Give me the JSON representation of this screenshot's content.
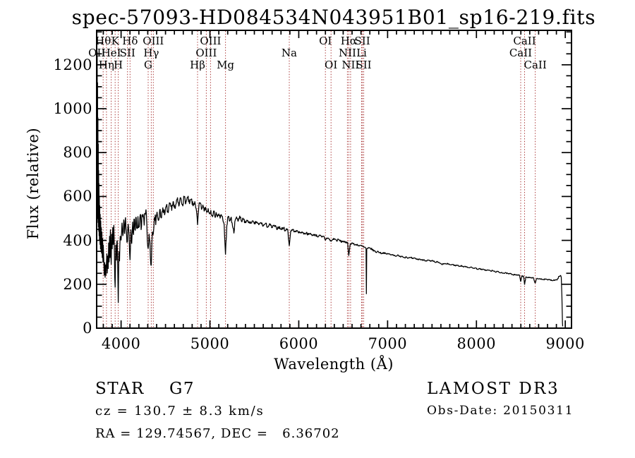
{
  "title": "spec-57093-HD084534N043951B01_sp16-219.fits",
  "annotations": {
    "object_class": "STAR    G7",
    "cz": "cz = 130.7 ± 8.3 km/s",
    "radec": "RA = 129.74567, DEC =   6.36702",
    "survey": "LAMOST DR3",
    "obs_date": "Obs-Date: 20150311"
  },
  "colors": {
    "spectrum": "#000000",
    "line_marker": "#a83434",
    "frame": "#000000",
    "background": "#ffffff"
  },
  "chart_data": {
    "type": "line",
    "title": "spec-57093-HD084534N043951B01_sp16-219.fits",
    "xlabel": "Wavelength (Å)",
    "ylabel": "Flux (relative)",
    "xlim": [
      3725,
      9070
    ],
    "ylim": [
      0,
      1357
    ],
    "x_ticks": [
      4000,
      5000,
      6000,
      7000,
      8000,
      9000
    ],
    "y_ticks": [
      0,
      200,
      400,
      600,
      800,
      1000,
      1200
    ],
    "x_minor_step": 100,
    "y_minor_step": 50,
    "grid": false,
    "legend": "none",
    "spectral_lines": [
      {
        "label": "OII",
        "wavelength": 3727,
        "row": 2
      },
      {
        "label": "Hθ",
        "wavelength": 3798,
        "row": 1
      },
      {
        "label": "Hη",
        "wavelength": 3835,
        "row": 3
      },
      {
        "label": "HeI",
        "wavelength": 3889,
        "row": 2
      },
      {
        "label": "K",
        "wavelength": 3933,
        "row": 1
      },
      {
        "label": "H",
        "wavelength": 3968,
        "row": 3
      },
      {
        "label": "SII",
        "wavelength": 4072,
        "row": 2
      },
      {
        "label": "Hδ",
        "wavelength": 4101,
        "row": 1
      },
      {
        "label": "G",
        "wavelength": 4305,
        "row": 3
      },
      {
        "label": "Hγ",
        "wavelength": 4340,
        "row": 2
      },
      {
        "label": "OIII",
        "wavelength": 4363,
        "row": 1
      },
      {
        "label": "Hβ",
        "wavelength": 4861,
        "row": 3
      },
      {
        "label": "OIII",
        "wavelength": 4959,
        "row": 2
      },
      {
        "label": "OIII",
        "wavelength": 5007,
        "row": 1
      },
      {
        "label": "Mg",
        "wavelength": 5175,
        "row": 3
      },
      {
        "label": "Na",
        "wavelength": 5893,
        "row": 2
      },
      {
        "label": "OI",
        "wavelength": 6300,
        "row": 1
      },
      {
        "label": "OI",
        "wavelength": 6363,
        "row": 3
      },
      {
        "label": "NII",
        "wavelength": 6548,
        "row": 2
      },
      {
        "label": "Hα",
        "wavelength": 6563,
        "row": 1
      },
      {
        "label": "NII",
        "wavelength": 6583,
        "row": 3
      },
      {
        "label": "Li",
        "wavelength": 6707,
        "row": 2
      },
      {
        "label": "SII",
        "wavelength": 6716,
        "row": 1
      },
      {
        "label": "SII",
        "wavelength": 6731,
        "row": 3
      },
      {
        "label": "CaII",
        "wavelength": 8498,
        "row": 2
      },
      {
        "label": "CaII",
        "wavelength": 8542,
        "row": 1
      },
      {
        "label": "CaII",
        "wavelength": 8662,
        "row": 3
      }
    ],
    "noise_regions": [
      [
        3727,
        3802,
        0
      ],
      [
        3802,
        4400,
        40
      ],
      [
        4400,
        4700,
        18
      ],
      [
        4700,
        5400,
        14
      ],
      [
        5400,
        5900,
        8
      ],
      [
        5900,
        6500,
        6
      ],
      [
        6500,
        6900,
        5
      ],
      [
        6900,
        7600,
        4
      ],
      [
        7600,
        8900,
        3
      ],
      [
        8900,
        8972,
        5
      ]
    ],
    "anchors": [
      [
        3727,
        1350
      ],
      [
        3729,
        520
      ],
      [
        3731,
        1260
      ],
      [
        3733,
        500
      ],
      [
        3735,
        1120
      ],
      [
        3737,
        540
      ],
      [
        3739,
        960
      ],
      [
        3741,
        480
      ],
      [
        3743,
        840
      ],
      [
        3745,
        460
      ],
      [
        3747,
        720
      ],
      [
        3749,
        440
      ],
      [
        3751,
        660
      ],
      [
        3753,
        420
      ],
      [
        3755,
        600
      ],
      [
        3757,
        400
      ],
      [
        3759,
        560
      ],
      [
        3762,
        380
      ],
      [
        3765,
        520
      ],
      [
        3768,
        360
      ],
      [
        3771,
        490
      ],
      [
        3774,
        350
      ],
      [
        3777,
        460
      ],
      [
        3780,
        340
      ],
      [
        3784,
        440
      ],
      [
        3788,
        320
      ],
      [
        3792,
        410
      ],
      [
        3796,
        300
      ],
      [
        3800,
        380
      ],
      [
        3805,
        310
      ],
      [
        3810,
        240
      ],
      [
        3815,
        300
      ],
      [
        3820,
        230
      ],
      [
        3825,
        290
      ],
      [
        3830,
        240
      ],
      [
        3835,
        300
      ],
      [
        3840,
        340
      ],
      [
        3845,
        250
      ],
      [
        3850,
        330
      ],
      [
        3855,
        270
      ],
      [
        3860,
        390
      ],
      [
        3865,
        300
      ],
      [
        3870,
        420
      ],
      [
        3875,
        320
      ],
      [
        3880,
        450
      ],
      [
        3885,
        340
      ],
      [
        3889,
        290
      ],
      [
        3894,
        430
      ],
      [
        3900,
        360
      ],
      [
        3906,
        460
      ],
      [
        3912,
        380
      ],
      [
        3918,
        470
      ],
      [
        3924,
        360
      ],
      [
        3933,
        185
      ],
      [
        3940,
        380
      ],
      [
        3948,
        310
      ],
      [
        3956,
        400
      ],
      [
        3962,
        290
      ],
      [
        3968,
        115
      ],
      [
        3975,
        350
      ],
      [
        3982,
        305
      ],
      [
        3990,
        420
      ],
      [
        4000,
        400
      ],
      [
        4010,
        480
      ],
      [
        4020,
        420
      ],
      [
        4030,
        495
      ],
      [
        4040,
        430
      ],
      [
        4050,
        505
      ],
      [
        4060,
        440
      ],
      [
        4072,
        395
      ],
      [
        4080,
        475
      ],
      [
        4090,
        425
      ],
      [
        4101,
        310
      ],
      [
        4110,
        450
      ],
      [
        4120,
        385
      ],
      [
        4130,
        485
      ],
      [
        4140,
        425
      ],
      [
        4150,
        495
      ],
      [
        4160,
        445
      ],
      [
        4170,
        505
      ],
      [
        4180,
        455
      ],
      [
        4190,
        510
      ],
      [
        4200,
        460
      ],
      [
        4215,
        515
      ],
      [
        4230,
        465
      ],
      [
        4245,
        520
      ],
      [
        4260,
        468
      ],
      [
        4275,
        525
      ],
      [
        4290,
        472
      ],
      [
        4305,
        362
      ],
      [
        4315,
        430
      ],
      [
        4325,
        395
      ],
      [
        4340,
        285
      ],
      [
        4352,
        440
      ],
      [
        4363,
        430
      ],
      [
        4375,
        505
      ],
      [
        4390,
        470
      ],
      [
        4405,
        530
      ],
      [
        4420,
        490
      ],
      [
        4435,
        540
      ],
      [
        4450,
        502
      ],
      [
        4470,
        550
      ],
      [
        4490,
        515
      ],
      [
        4510,
        558
      ],
      [
        4530,
        525
      ],
      [
        4550,
        566
      ],
      [
        4570,
        535
      ],
      [
        4590,
        576
      ],
      [
        4610,
        545
      ],
      [
        4630,
        586
      ],
      [
        4650,
        555
      ],
      [
        4670,
        595
      ],
      [
        4690,
        565
      ],
      [
        4710,
        598
      ],
      [
        4730,
        572
      ],
      [
        4750,
        596
      ],
      [
        4770,
        566
      ],
      [
        4790,
        588
      ],
      [
        4810,
        556
      ],
      [
        4830,
        578
      ],
      [
        4845,
        545
      ],
      [
        4861,
        470
      ],
      [
        4875,
        552
      ],
      [
        4890,
        572
      ],
      [
        4905,
        540
      ],
      [
        4920,
        562
      ],
      [
        4935,
        532
      ],
      [
        4950,
        552
      ],
      [
        4965,
        526
      ],
      [
        4980,
        546
      ],
      [
        4995,
        520
      ],
      [
        5010,
        538
      ],
      [
        5025,
        514
      ],
      [
        5040,
        532
      ],
      [
        5055,
        510
      ],
      [
        5070,
        528
      ],
      [
        5085,
        506
      ],
      [
        5100,
        522
      ],
      [
        5115,
        500
      ],
      [
        5130,
        515
      ],
      [
        5145,
        494
      ],
      [
        5160,
        472
      ],
      [
        5175,
        335
      ],
      [
        5190,
        468
      ],
      [
        5205,
        508
      ],
      [
        5220,
        487
      ],
      [
        5235,
        502
      ],
      [
        5250,
        480
      ],
      [
        5270,
        432
      ],
      [
        5285,
        492
      ],
      [
        5300,
        508
      ],
      [
        5320,
        488
      ],
      [
        5340,
        502
      ],
      [
        5360,
        484
      ],
      [
        5380,
        497
      ],
      [
        5400,
        480
      ],
      [
        5425,
        492
      ],
      [
        5450,
        476
      ],
      [
        5475,
        488
      ],
      [
        5500,
        474
      ],
      [
        5525,
        485
      ],
      [
        5550,
        470
      ],
      [
        5575,
        481
      ],
      [
        5600,
        466
      ],
      [
        5625,
        476
      ],
      [
        5650,
        462
      ],
      [
        5675,
        472
      ],
      [
        5700,
        458
      ],
      [
        5725,
        467
      ],
      [
        5750,
        454
      ],
      [
        5775,
        462
      ],
      [
        5800,
        450
      ],
      [
        5825,
        458
      ],
      [
        5850,
        446
      ],
      [
        5875,
        452
      ],
      [
        5893,
        375
      ],
      [
        5910,
        444
      ],
      [
        5935,
        449
      ],
      [
        5960,
        438
      ],
      [
        5985,
        444
      ],
      [
        6010,
        434
      ],
      [
        6035,
        439
      ],
      [
        6060,
        430
      ],
      [
        6085,
        435
      ],
      [
        6110,
        426
      ],
      [
        6135,
        431
      ],
      [
        6160,
        422
      ],
      [
        6185,
        427
      ],
      [
        6210,
        418
      ],
      [
        6235,
        422
      ],
      [
        6260,
        414
      ],
      [
        6285,
        418
      ],
      [
        6300,
        400
      ],
      [
        6315,
        412
      ],
      [
        6340,
        407
      ],
      [
        6363,
        395
      ],
      [
        6380,
        404
      ],
      [
        6400,
        408
      ],
      [
        6425,
        399
      ],
      [
        6450,
        403
      ],
      [
        6475,
        394
      ],
      [
        6500,
        397
      ],
      [
        6525,
        389
      ],
      [
        6550,
        391
      ],
      [
        6563,
        330
      ],
      [
        6580,
        385
      ],
      [
        6605,
        388
      ],
      [
        6630,
        379
      ],
      [
        6655,
        382
      ],
      [
        6680,
        374
      ],
      [
        6705,
        376
      ],
      [
        6730,
        369
      ],
      [
        6750,
        367
      ],
      [
        6757,
        362
      ],
      [
        6761,
        155
      ],
      [
        6765,
        360
      ],
      [
        6780,
        363
      ],
      [
        6805,
        365
      ],
      [
        6830,
        357
      ],
      [
        6855,
        351
      ],
      [
        6870,
        346
      ],
      [
        6885,
        350
      ],
      [
        6910,
        345
      ],
      [
        6935,
        341
      ],
      [
        6960,
        344
      ],
      [
        6985,
        337
      ],
      [
        7010,
        340
      ],
      [
        7035,
        333
      ],
      [
        7060,
        336
      ],
      [
        7085,
        329
      ],
      [
        7110,
        332
      ],
      [
        7135,
        326
      ],
      [
        7160,
        329
      ],
      [
        7185,
        322
      ],
      [
        7210,
        325
      ],
      [
        7235,
        319
      ],
      [
        7260,
        321
      ],
      [
        7285,
        316
      ],
      [
        7310,
        318
      ],
      [
        7335,
        313
      ],
      [
        7360,
        315
      ],
      [
        7385,
        310
      ],
      [
        7410,
        312
      ],
      [
        7435,
        307
      ],
      [
        7460,
        309
      ],
      [
        7485,
        304
      ],
      [
        7510,
        306
      ],
      [
        7535,
        300
      ],
      [
        7560,
        302
      ],
      [
        7585,
        296
      ],
      [
        7610,
        290
      ],
      [
        7635,
        294
      ],
      [
        7660,
        292
      ],
      [
        7685,
        293
      ],
      [
        7710,
        288
      ],
      [
        7735,
        290
      ],
      [
        7760,
        285
      ],
      [
        7785,
        287
      ],
      [
        7810,
        282
      ],
      [
        7835,
        284
      ],
      [
        7860,
        279
      ],
      [
        7885,
        281
      ],
      [
        7910,
        276
      ],
      [
        7935,
        278
      ],
      [
        7960,
        273
      ],
      [
        7985,
        275
      ],
      [
        8010,
        269
      ],
      [
        8035,
        271
      ],
      [
        8060,
        266
      ],
      [
        8085,
        268
      ],
      [
        8110,
        263
      ],
      [
        8135,
        265
      ],
      [
        8160,
        260
      ],
      [
        8185,
        262
      ],
      [
        8210,
        257
      ],
      [
        8235,
        258
      ],
      [
        8260,
        253
      ],
      [
        8285,
        254
      ],
      [
        8310,
        250
      ],
      [
        8335,
        251
      ],
      [
        8360,
        247
      ],
      [
        8385,
        248
      ],
      [
        8410,
        244
      ],
      [
        8435,
        245
      ],
      [
        8460,
        241
      ],
      [
        8485,
        242
      ],
      [
        8498,
        212
      ],
      [
        8512,
        238
      ],
      [
        8530,
        236
      ],
      [
        8542,
        198
      ],
      [
        8556,
        234
      ],
      [
        8580,
        231
      ],
      [
        8600,
        232
      ],
      [
        8622,
        228
      ],
      [
        8642,
        229
      ],
      [
        8662,
        205
      ],
      [
        8678,
        226
      ],
      [
        8700,
        224
      ],
      [
        8725,
        225
      ],
      [
        8750,
        222
      ],
      [
        8775,
        223
      ],
      [
        8800,
        220
      ],
      [
        8825,
        221
      ],
      [
        8850,
        218
      ],
      [
        8875,
        219
      ],
      [
        8900,
        221
      ],
      [
        8915,
        227
      ],
      [
        8930,
        236
      ],
      [
        8945,
        241
      ],
      [
        8955,
        232
      ],
      [
        8962,
        145
      ],
      [
        8968,
        25
      ],
      [
        8971,
        8
      ]
    ]
  }
}
